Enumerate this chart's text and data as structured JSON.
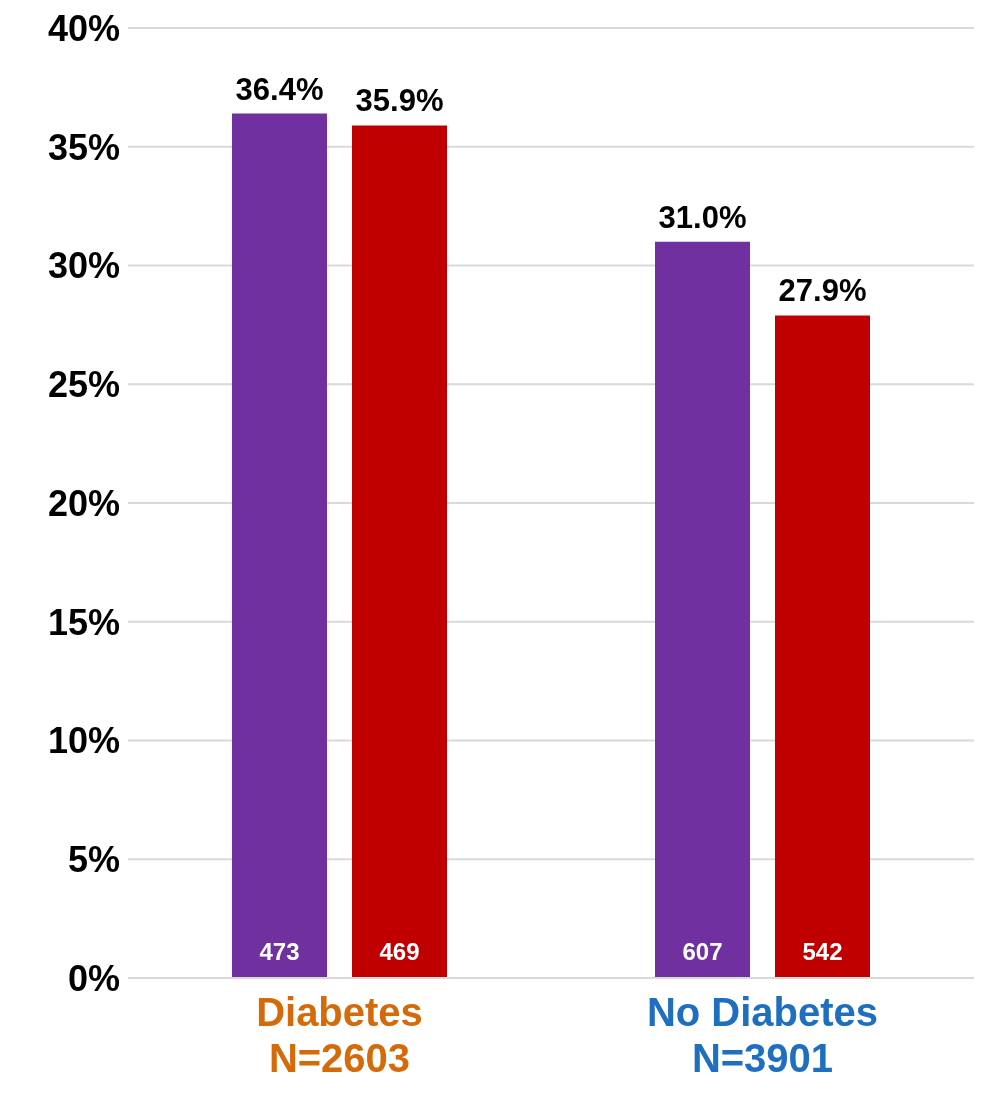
{
  "chart_data": {
    "type": "bar",
    "categories": [
      "Diabetes\nN=2603",
      "No Diabetes\nN=3901"
    ],
    "series": [
      {
        "color": "#7030a0",
        "values": [
          36.4,
          31.0
        ],
        "value_labels": [
          "36.4%",
          "31.0%"
        ]
      },
      {
        "color": "#c00000",
        "values": [
          35.9,
          27.9
        ],
        "value_labels": [
          "35.9%",
          "27.9%"
        ]
      }
    ],
    "ylim": [
      0,
      40
    ],
    "yticks": [
      {
        "value": 0,
        "label": "0%"
      },
      {
        "value": 5,
        "label": "5%"
      },
      {
        "value": 10,
        "label": "10%"
      },
      {
        "value": 15,
        "label": "15%"
      },
      {
        "value": 20,
        "label": "20%"
      },
      {
        "value": 25,
        "label": "25%"
      },
      {
        "value": 30,
        "label": "30%"
      },
      {
        "value": 35,
        "label": "35%"
      },
      {
        "value": 40,
        "label": "40%"
      }
    ],
    "grid": "y",
    "annotations": [
      "473",
      "469",
      "607",
      "542"
    ]
  }
}
